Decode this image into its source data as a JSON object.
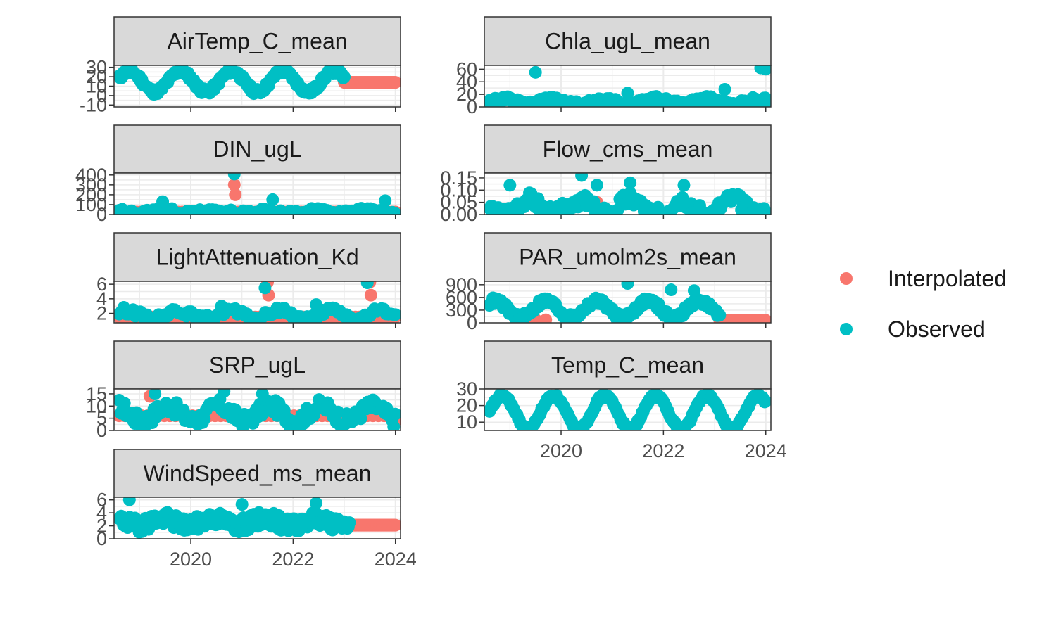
{
  "chart_data": {
    "type": "scatter",
    "x_axis": {
      "ticks": [
        "2020",
        "2022",
        "2024"
      ],
      "xlim": [
        2018.5,
        2024.1
      ]
    },
    "legend": {
      "placement": "right",
      "entries": [
        {
          "label": "Interpolated",
          "color": "#F8766D"
        },
        {
          "label": "Observed",
          "color": "#00BFC4"
        }
      ]
    },
    "panels": [
      {
        "title": "AirTemp_C_mean",
        "ylim": [
          -12,
          32
        ],
        "y_ticks": [
          "-10",
          "0",
          "10",
          "20",
          "30"
        ],
        "observed": {
          "range": [
            2018.6,
            2023.0
          ],
          "base": 15,
          "amp": 11,
          "phase": 0.55,
          "noise": 3,
          "points": 200,
          "seed": 11,
          "spikes": []
        },
        "interpolated": {
          "range": [
            2023.0,
            2024.0
          ],
          "value": 14,
          "points": 60
        }
      },
      {
        "title": "Chla_ugL_mean",
        "ylim": [
          0,
          66
        ],
        "y_ticks": [
          "0",
          "20",
          "40",
          "60"
        ],
        "observed": {
          "range": [
            2018.6,
            2024.05
          ],
          "base": 8,
          "amp": 4,
          "phase": 0.6,
          "noise": 5,
          "points": 200,
          "seed": 12,
          "spikes": [
            [
              2019.5,
              55
            ],
            [
              2023.9,
              62
            ],
            [
              2024.0,
              60
            ],
            [
              2021.3,
              22
            ],
            [
              2023.2,
              28
            ]
          ]
        },
        "interpolated": {
          "range": [
            2018.6,
            2024.05
          ],
          "value": 8,
          "points": 0
        }
      },
      {
        "title": "DIN_ugL",
        "ylim": [
          0,
          420
        ],
        "y_ticks": [
          "0",
          "100",
          "200",
          "300",
          "400"
        ],
        "observed": {
          "range": [
            2018.6,
            2024.0
          ],
          "base": 30,
          "amp": 15,
          "phase": 0.2,
          "noise": 25,
          "points": 90,
          "seed": 13,
          "spikes": [
            [
              2020.85,
              410
            ],
            [
              2021.6,
              150
            ],
            [
              2019.45,
              130
            ],
            [
              2023.8,
              140
            ]
          ]
        },
        "interpolated": {
          "range": [
            2018.6,
            2024.0
          ],
          "value": 25,
          "points": 80,
          "spikes": [
            [
              2020.85,
              300
            ],
            [
              2020.87,
              200
            ],
            [
              2024.0,
              20
            ]
          ]
        }
      },
      {
        "title": "Flow_cms_mean",
        "ylim": [
          0,
          0.17
        ],
        "y_ticks": [
          "0.00",
          "0.05",
          "0.10",
          "0.15"
        ],
        "observed": {
          "range": [
            2018.6,
            2024.0
          ],
          "base": 0.03,
          "amp": 0.03,
          "phase": 0.1,
          "noise": 0.03,
          "points": 160,
          "seed": 14,
          "spikes": [
            [
              2020.4,
              0.16
            ],
            [
              2021.35,
              0.13
            ],
            [
              2019.0,
              0.12
            ],
            [
              2020.7,
              0.12
            ],
            [
              2022.4,
              0.12
            ]
          ]
        },
        "interpolated": {
          "range": [
            2020.4,
            2020.7
          ],
          "value": 0.05,
          "points": 12
        }
      },
      {
        "title": "LightAttenuation_Kd",
        "ylim": [
          0.7,
          6.4
        ],
        "y_ticks": [
          "2",
          "4",
          "6"
        ],
        "observed": {
          "range": [
            2018.6,
            2024.0
          ],
          "base": 1.8,
          "amp": 0.6,
          "phase": 0.5,
          "noise": 0.5,
          "points": 120,
          "seed": 15,
          "spikes": [
            [
              2021.45,
              5.5
            ],
            [
              2023.45,
              6.2
            ],
            [
              2022.45,
              3.2
            ],
            [
              2020.6,
              3.0
            ]
          ]
        },
        "interpolated": {
          "range": [
            2018.6,
            2024.0
          ],
          "value": 1.5,
          "points": 70,
          "spikes": [
            [
              2021.5,
              6.3
            ],
            [
              2023.5,
              6.3
            ],
            [
              2021.52,
              4.5
            ],
            [
              2023.52,
              4.5
            ]
          ]
        }
      },
      {
        "title": "PAR_umolm2s_mean",
        "ylim": [
          0,
          980
        ],
        "y_ticks": [
          "0",
          "300",
          "600",
          "900"
        ],
        "observed": {
          "range": [
            2018.6,
            2023.1
          ],
          "base": 320,
          "amp": 200,
          "phase": 0.45,
          "noise": 80,
          "points": 200,
          "seed": 16,
          "spikes": [
            [
              2021.3,
              930
            ],
            [
              2022.15,
              780
            ],
            [
              2022.6,
              760
            ]
          ]
        },
        "interpolated": {
          "range": [
            2023.1,
            2024.0
          ],
          "value": 60,
          "points": 50,
          "spikes": [
            [
              2019.3,
              90
            ],
            [
              2019.5,
              80
            ],
            [
              2019.7,
              70
            ]
          ]
        }
      },
      {
        "title": "SRP_ugL",
        "ylim": [
          0,
          17
        ],
        "y_ticks": [
          "0",
          "5",
          "10",
          "15"
        ],
        "observed": {
          "range": [
            2018.6,
            2024.0
          ],
          "base": 7,
          "amp": 3,
          "phase": 0.3,
          "noise": 3,
          "points": 160,
          "seed": 17,
          "spikes": [
            [
              2020.65,
              16
            ],
            [
              2021.4,
              15
            ],
            [
              2019.3,
              15
            ]
          ]
        },
        "interpolated": {
          "range": [
            2018.6,
            2024.0
          ],
          "value": 6,
          "points": 50,
          "spikes": [
            [
              2024.0,
              4
            ],
            [
              2019.2,
              14
            ]
          ]
        }
      },
      {
        "title": "Temp_C_mean",
        "ylim": [
          5,
          30
        ],
        "y_ticks": [
          "10",
          "20",
          "30"
        ],
        "observed": {
          "range": [
            2018.6,
            2024.0
          ],
          "base": 16,
          "amp": 10,
          "phase": 0.6,
          "noise": 1,
          "points": 260,
          "seed": 18,
          "spikes": []
        },
        "interpolated": {
          "range": [
            2018.6,
            2024.0
          ],
          "value": 16,
          "points": 0
        }
      },
      {
        "title": "WindSpeed_ms_mean",
        "ylim": [
          0,
          6.4
        ],
        "y_ticks": [
          "0",
          "2",
          "4",
          "6"
        ],
        "observed": {
          "range": [
            2018.6,
            2023.1
          ],
          "base": 2.6,
          "amp": 0.5,
          "phase": 0.2,
          "noise": 1.1,
          "points": 220,
          "seed": 19,
          "spikes": [
            [
              2018.8,
              6.0
            ],
            [
              2022.45,
              5.5
            ],
            [
              2021.0,
              5.3
            ]
          ]
        },
        "interpolated": {
          "range": [
            2023.1,
            2024.0
          ],
          "value": 2.1,
          "points": 50
        }
      }
    ]
  }
}
